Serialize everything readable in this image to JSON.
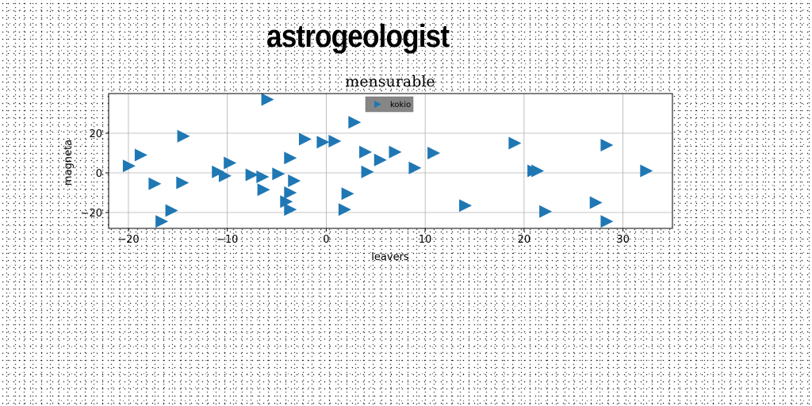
{
  "heading": "astrogeologist",
  "chart_data": {
    "type": "scatter",
    "title": "mensurable",
    "xlabel": "leavers",
    "ylabel": "magneta",
    "xlim": [
      -22,
      35
    ],
    "ylim": [
      -28,
      40
    ],
    "xticks": [
      -20,
      -10,
      0,
      10,
      20,
      30
    ],
    "yticks": [
      -20,
      0,
      20
    ],
    "grid": true,
    "legend_position": "top-center",
    "marker": "triangle-right",
    "colors": {
      "series": "#1f77b4",
      "legend_bg": "#808080"
    },
    "series": [
      {
        "name": "kokio",
        "points": [
          [
            -6,
            37
          ],
          [
            2.8,
            25.5
          ],
          [
            -14.5,
            18.5
          ],
          [
            -2.2,
            17
          ],
          [
            -0.4,
            15.5
          ],
          [
            0.8,
            16
          ],
          [
            -18.8,
            9
          ],
          [
            -20,
            3.5
          ],
          [
            -9.8,
            5
          ],
          [
            -3.7,
            7.5
          ],
          [
            3.9,
            10.5
          ],
          [
            6.9,
            10.5
          ],
          [
            5.4,
            6.5
          ],
          [
            10.8,
            10
          ],
          [
            19,
            15
          ],
          [
            28.3,
            14
          ],
          [
            -11,
            0.5
          ],
          [
            -10.3,
            -1.5
          ],
          [
            -7.6,
            -1
          ],
          [
            -6.5,
            -2
          ],
          [
            -4.9,
            -0.5
          ],
          [
            4.1,
            0.5
          ],
          [
            8.9,
            2.5
          ],
          [
            20.9,
            1
          ],
          [
            21.3,
            1
          ],
          [
            32.3,
            1
          ],
          [
            -17.4,
            -5.5
          ],
          [
            -14.6,
            -5
          ],
          [
            -6.4,
            -8.5
          ],
          [
            -3.3,
            -4
          ],
          [
            -3.7,
            -10
          ],
          [
            2.1,
            -10.5
          ],
          [
            -4.1,
            -14.5
          ],
          [
            -3.7,
            -18.5
          ],
          [
            -15.7,
            -19
          ],
          [
            -16.7,
            -24.5
          ],
          [
            1.8,
            -18.5
          ],
          [
            14,
            -16.5
          ],
          [
            22.1,
            -19.5
          ],
          [
            27.2,
            -15
          ],
          [
            28.3,
            -24.5
          ]
        ]
      }
    ]
  }
}
